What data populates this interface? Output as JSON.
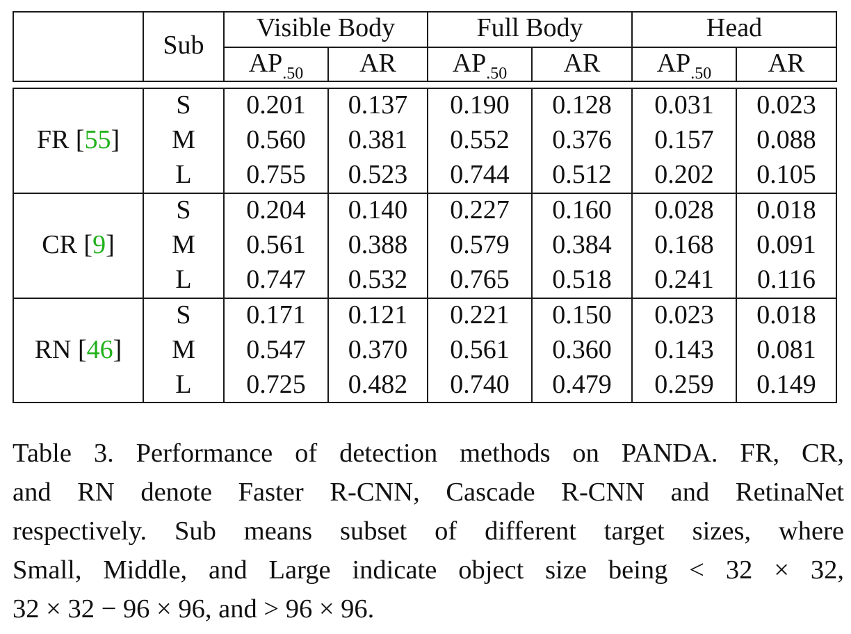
{
  "table": {
    "header": {
      "sub": "Sub",
      "groups": [
        "Visible Body",
        "Full Body",
        "Head"
      ],
      "metric_ap_main": "AP",
      "metric_ap_sub": ".50",
      "metric_ar": "AR"
    },
    "methods": [
      {
        "name": "FR [",
        "ref": "55",
        "close": "]",
        "rows": [
          {
            "sub": "S",
            "values": [
              "0.201",
              "0.137",
              "0.190",
              "0.128",
              "0.031",
              "0.023"
            ]
          },
          {
            "sub": "M",
            "values": [
              "0.560",
              "0.381",
              "0.552",
              "0.376",
              "0.157",
              "0.088"
            ]
          },
          {
            "sub": "L",
            "values": [
              "0.755",
              "0.523",
              "0.744",
              "0.512",
              "0.202",
              "0.105"
            ]
          }
        ]
      },
      {
        "name": "CR [",
        "ref": "9",
        "close": "]",
        "rows": [
          {
            "sub": "S",
            "values": [
              "0.204",
              "0.140",
              "0.227",
              "0.160",
              "0.028",
              "0.018"
            ]
          },
          {
            "sub": "M",
            "values": [
              "0.561",
              "0.388",
              "0.579",
              "0.384",
              "0.168",
              "0.091"
            ]
          },
          {
            "sub": "L",
            "values": [
              "0.747",
              "0.532",
              "0.765",
              "0.518",
              "0.241",
              "0.116"
            ]
          }
        ]
      },
      {
        "name": "RN [",
        "ref": "46",
        "close": "]",
        "rows": [
          {
            "sub": "S",
            "values": [
              "0.171",
              "0.121",
              "0.221",
              "0.150",
              "0.023",
              "0.018"
            ]
          },
          {
            "sub": "M",
            "values": [
              "0.547",
              "0.370",
              "0.561",
              "0.360",
              "0.143",
              "0.081"
            ]
          },
          {
            "sub": "L",
            "values": [
              "0.725",
              "0.482",
              "0.740",
              "0.479",
              "0.259",
              "0.149"
            ]
          }
        ]
      }
    ]
  },
  "caption": {
    "lines": [
      "Table 3. Performance of detection methods on PANDA. FR, CR,",
      "and RN denote Faster R-CNN, Cascade R-CNN and RetinaNet",
      "respectively.  Sub means subset of different target sizes, where",
      "Small, Middle, and Large indicate object size being < 32 × 32,",
      "32 × 32 − 96 × 96, and > 96 × 96."
    ]
  },
  "colors": {
    "reference_link": "#22b11c",
    "text": "#111111",
    "rules": "#1a1a1a"
  }
}
